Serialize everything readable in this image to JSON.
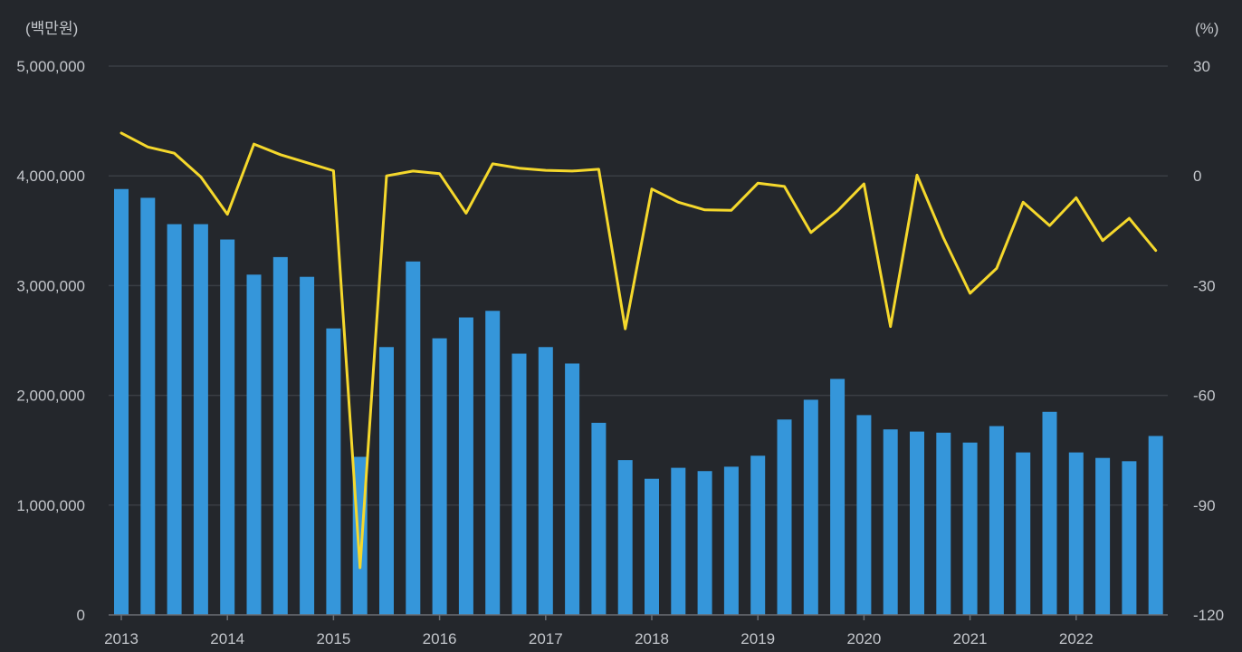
{
  "colors": {
    "background": "#24272c",
    "grid": "#3a3e44",
    "axis": "#6b6f75",
    "text": "#c3c6cb",
    "bar": "#3596da",
    "line": "#f5d82c"
  },
  "chart_data": {
    "type": "bar+line",
    "left_axis_unit": "(백만원)",
    "right_axis_unit": "(%)",
    "left_ylim": [
      0,
      5000000
    ],
    "right_ylim": [
      -120,
      30
    ],
    "left_ticks": [
      "0",
      "1,000,000",
      "2,000,000",
      "3,000,000",
      "4,000,000",
      "5,000,000"
    ],
    "right_ticks": [
      "-120",
      "-90",
      "-60",
      "-30",
      "0",
      "30"
    ],
    "year_labels": [
      "2013",
      "2014",
      "2015",
      "2016",
      "2017",
      "2018",
      "2019",
      "2020",
      "2021",
      "2022"
    ],
    "grid": true,
    "series": [
      {
        "name": "bars",
        "type": "bar",
        "axis": "left",
        "values": [
          3880000,
          3800000,
          3560000,
          3560000,
          3420000,
          3100000,
          3260000,
          3080000,
          2610000,
          1440000,
          2440000,
          3220000,
          2520000,
          2710000,
          2770000,
          2380000,
          2440000,
          2290000,
          1750000,
          1410000,
          1240000,
          1340000,
          1310000,
          1350000,
          1450000,
          1780000,
          1960000,
          2150000,
          1820000,
          1690000,
          1670000,
          1660000,
          1570000,
          1720000,
          1480000,
          1850000,
          1480000,
          1430000,
          1400000,
          1630000
        ]
      },
      {
        "name": "line",
        "type": "line",
        "axis": "right",
        "values": [
          11.7,
          7.9,
          6.2,
          -0.3,
          -10.5,
          8.7,
          5.8,
          3.6,
          1.4,
          -107.1,
          0.0,
          1.3,
          0.6,
          -10.2,
          3.3,
          2.1,
          1.5,
          1.3,
          1.8,
          -41.8,
          -3.6,
          -7.2,
          -9.3,
          -9.4,
          -2.0,
          -2.9,
          -15.5,
          -9.6,
          -2.2,
          -41.2,
          0.2,
          -17.0,
          -32.1,
          -25.3,
          -7.2,
          -13.6,
          -6.0,
          -17.7,
          -11.6,
          -20.4
        ]
      }
    ]
  }
}
